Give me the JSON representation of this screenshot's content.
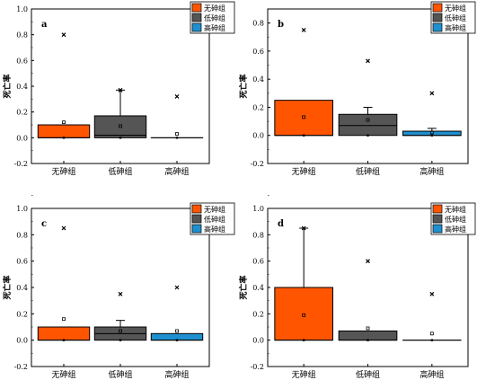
{
  "chart_data": [
    {
      "type": "box",
      "panel": "a",
      "ylabel": "死亡率",
      "ylim": [
        -0.2,
        1.0
      ],
      "yticks": [
        "-0.2",
        "0.0",
        "0.2",
        "0.4",
        "0.6",
        "0.8",
        "1.0"
      ],
      "categories": [
        "无砷组",
        "低砷组",
        "高砷组"
      ],
      "legend": [
        "无砷组",
        "低砷组",
        "高砷组"
      ],
      "legend_position": "top-right",
      "colors": [
        "#FF5500",
        "#555555",
        "#1E90D0"
      ],
      "boxes": [
        {
          "q1": 0.0,
          "median": 0.0,
          "q3": 0.1,
          "mean": 0.12,
          "max": 0.8,
          "min": 0.0
        },
        {
          "q1": 0.0,
          "median": 0.02,
          "q3": 0.17,
          "mean": 0.09,
          "max": 0.37,
          "min": 0.0,
          "whisker_high": 0.37
        },
        {
          "q1": 0.0,
          "median": 0.0,
          "q3": 0.0,
          "mean": 0.03,
          "max": 0.32,
          "min": 0.0
        }
      ]
    },
    {
      "type": "box",
      "panel": "b",
      "ylabel": "死亡率",
      "ylim": [
        -0.2,
        0.9
      ],
      "yticks": [
        "-0.2",
        "0.0",
        "0.2",
        "0.4",
        "0.6",
        "0.8"
      ],
      "categories": [
        "无砷组",
        "低砷组",
        "高砷组"
      ],
      "legend": [
        "无砷组",
        "低砷组",
        "高砷组"
      ],
      "legend_position": "top-right",
      "colors": [
        "#FF5500",
        "#555555",
        "#1E90D0"
      ],
      "boxes": [
        {
          "q1": 0.0,
          "median": 0.0,
          "q3": 0.25,
          "mean": 0.13,
          "max": 0.75,
          "min": 0.0
        },
        {
          "q1": 0.0,
          "median": 0.07,
          "q3": 0.15,
          "mean": 0.11,
          "max": 0.53,
          "min": 0.0,
          "whisker_high": 0.2
        },
        {
          "q1": 0.0,
          "median": 0.0,
          "q3": 0.03,
          "mean": 0.02,
          "max": 0.3,
          "min": 0.0,
          "whisker_high": 0.05
        }
      ]
    },
    {
      "type": "box",
      "panel": "c",
      "ylabel": "死亡率",
      "ylim": [
        -0.2,
        1.0
      ],
      "yticks": [
        "-0.2",
        "0.0",
        "0.2",
        "0.4",
        "0.6",
        "0.8",
        "1.0"
      ],
      "categories": [
        "无砷组",
        "低砷组",
        "高砷组"
      ],
      "legend": [
        "无砷组",
        "低砷组",
        "高砷组"
      ],
      "legend_position": "top-right",
      "colors": [
        "#FF5500",
        "#555555",
        "#1E90D0"
      ],
      "boxes": [
        {
          "q1": 0.0,
          "median": 0.0,
          "q3": 0.1,
          "mean": 0.16,
          "max": 0.85,
          "min": 0.0
        },
        {
          "q1": 0.0,
          "median": 0.05,
          "q3": 0.1,
          "mean": 0.07,
          "max": 0.35,
          "min": 0.0,
          "whisker_high": 0.15
        },
        {
          "q1": 0.0,
          "median": 0.0,
          "q3": 0.05,
          "mean": 0.07,
          "max": 0.4,
          "min": 0.0
        }
      ]
    },
    {
      "type": "box",
      "panel": "d",
      "ylabel": "死亡率",
      "ylim": [
        -0.2,
        1.0
      ],
      "yticks": [
        "-0.2",
        "0.0",
        "0.2",
        "0.4",
        "0.6",
        "0.8",
        "1.0"
      ],
      "categories": [
        "无砷组",
        "低砷组",
        "高砷组"
      ],
      "legend": [
        "无砷组",
        "低砷组",
        "高砷组"
      ],
      "legend_position": "top-right",
      "colors": [
        "#FF5500",
        "#555555",
        "#1E90D0"
      ],
      "boxes": [
        {
          "q1": 0.0,
          "median": 0.0,
          "q3": 0.4,
          "mean": 0.19,
          "max": 0.85,
          "min": 0.0,
          "whisker_high": 0.85
        },
        {
          "q1": 0.0,
          "median": 0.0,
          "q3": 0.07,
          "mean": 0.09,
          "max": 0.6,
          "min": 0.0
        },
        {
          "q1": 0.0,
          "median": 0.0,
          "q3": 0.0,
          "mean": 0.05,
          "max": 0.35,
          "min": 0.0
        }
      ]
    }
  ]
}
